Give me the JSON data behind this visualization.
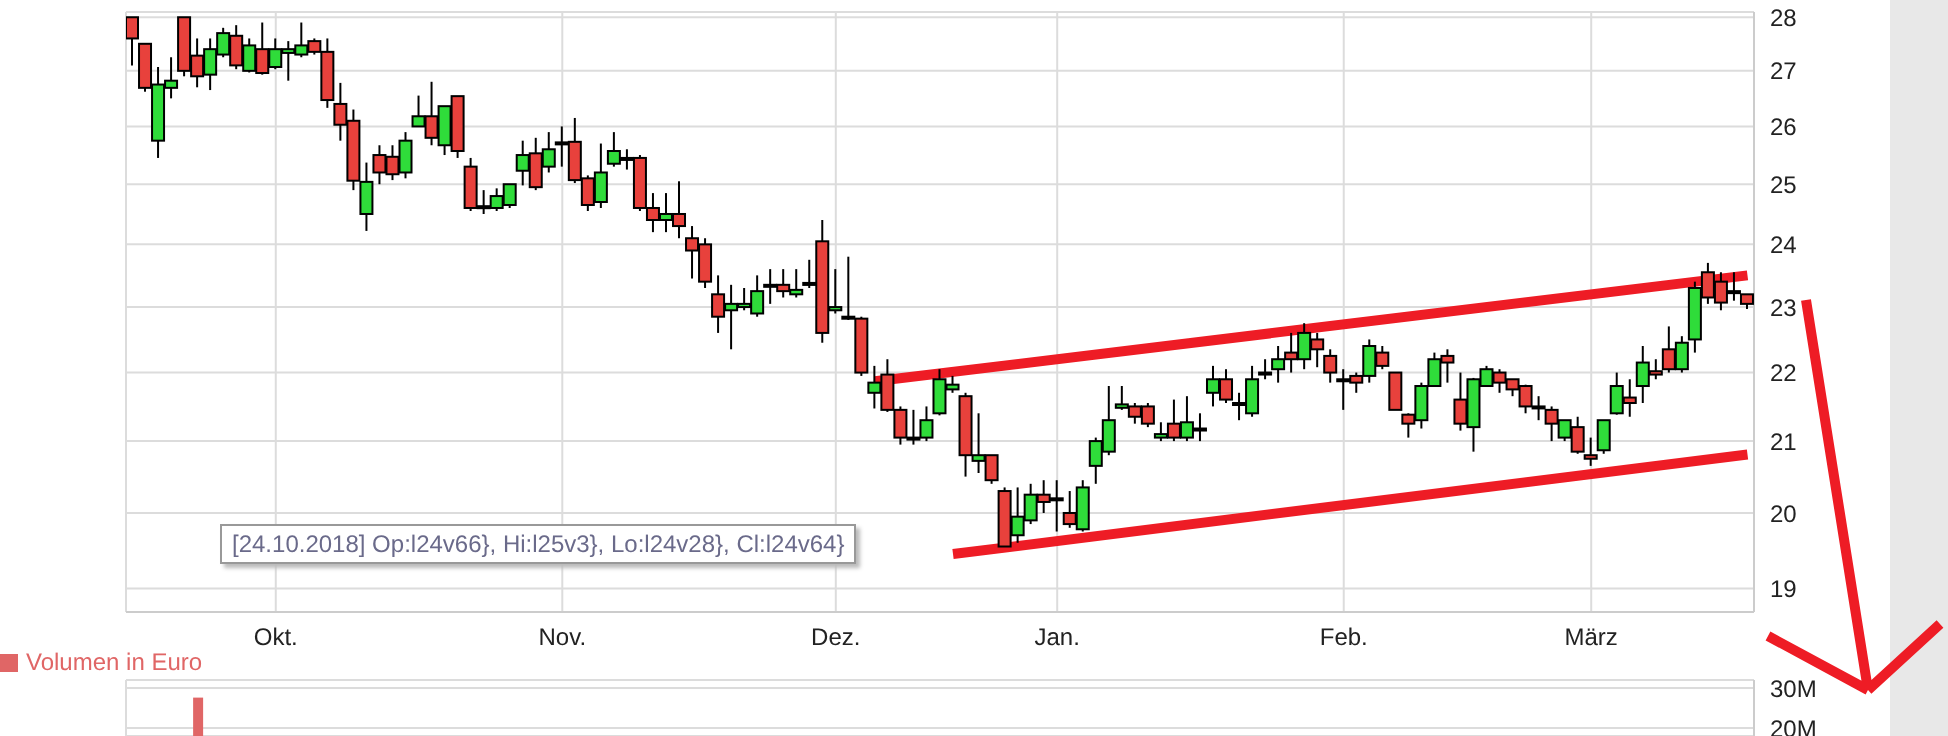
{
  "chart_data": [
    {
      "type": "candlestick",
      "log": true,
      "grid": true,
      "ylim": [
        18.7,
        28.1
      ],
      "yticks": [
        19,
        20,
        21,
        22,
        23,
        24,
        25,
        26,
        27,
        28
      ],
      "categories": [
        null,
        null,
        null,
        null,
        null,
        null,
        null,
        null,
        null,
        null,
        null,
        "Okt.",
        null,
        null,
        null,
        null,
        null,
        null,
        null,
        null,
        null,
        null,
        null,
        null,
        null,
        null,
        null,
        null,
        null,
        null,
        null,
        null,
        null,
        "Nov.",
        null,
        null,
        null,
        null,
        null,
        null,
        null,
        null,
        null,
        null,
        null,
        null,
        null,
        null,
        null,
        null,
        null,
        null,
        null,
        null,
        "Dez.",
        null,
        null,
        null,
        null,
        null,
        null,
        null,
        null,
        null,
        null,
        null,
        null,
        null,
        null,
        null,
        null,
        "Jan.",
        null,
        null,
        null,
        null,
        null,
        null,
        null,
        null,
        null,
        null,
        null,
        null,
        null,
        null,
        null,
        null,
        null,
        null,
        null,
        null,
        null,
        "Feb.",
        null,
        null,
        null,
        null,
        null,
        null,
        null,
        null,
        null,
        null,
        null,
        null,
        null,
        null,
        null,
        null,
        null,
        null,
        "März",
        null,
        null,
        null,
        null,
        null,
        null,
        null,
        null,
        null,
        null,
        null,
        null
      ],
      "annotations": [
        "[24.10.2018] Op:l24v66}, Hi:l25v3}, Lo:l24v28}, Cl:l24v64}"
      ],
      "ohlc": [
        [
          28.0,
          28.0,
          27.1,
          27.6
        ],
        [
          27.5,
          27.5,
          26.62,
          26.69
        ],
        [
          25.75,
          27.07,
          25.45,
          26.75
        ],
        [
          26.69,
          27.25,
          26.5,
          26.82
        ],
        [
          28.0,
          28.0,
          26.9,
          27.0
        ],
        [
          27.28,
          27.6,
          26.7,
          26.9
        ],
        [
          26.93,
          27.6,
          26.65,
          27.4
        ],
        [
          27.3,
          27.8,
          27.25,
          27.7
        ],
        [
          27.65,
          27.85,
          27.03,
          27.1
        ],
        [
          27.0,
          27.6,
          26.97,
          27.47
        ],
        [
          27.4,
          27.9,
          26.93,
          26.96
        ],
        [
          27.07,
          27.6,
          27.03,
          27.4
        ],
        [
          27.33,
          27.55,
          26.82,
          27.4
        ],
        [
          27.3,
          27.9,
          27.25,
          27.47
        ],
        [
          27.55,
          27.6,
          27.3,
          27.35
        ],
        [
          27.35,
          27.6,
          26.33,
          26.47
        ],
        [
          26.4,
          26.78,
          25.75,
          26.03
        ],
        [
          26.1,
          26.3,
          24.9,
          25.06
        ],
        [
          24.5,
          25.37,
          24.22,
          25.04
        ],
        [
          25.5,
          25.67,
          25.0,
          25.2
        ],
        [
          25.47,
          25.67,
          25.07,
          25.17
        ],
        [
          25.2,
          25.9,
          25.1,
          25.75
        ],
        [
          26.0,
          26.55,
          26.0,
          26.18
        ],
        [
          26.18,
          26.8,
          25.67,
          25.8
        ],
        [
          25.67,
          26.36,
          25.5,
          26.36
        ],
        [
          26.54,
          26.54,
          25.45,
          25.57
        ],
        [
          25.3,
          25.45,
          24.55,
          24.6
        ],
        [
          24.63,
          24.9,
          24.5,
          24.6
        ],
        [
          24.6,
          24.93,
          24.55,
          24.8
        ],
        [
          24.65,
          25.0,
          24.6,
          25.0
        ],
        [
          25.23,
          25.75,
          24.98,
          25.5
        ],
        [
          25.53,
          25.8,
          24.9,
          24.95
        ],
        [
          25.3,
          25.9,
          25.2,
          25.6
        ],
        [
          25.72,
          26.0,
          25.3,
          25.72
        ],
        [
          25.73,
          26.15,
          25.02,
          25.07
        ],
        [
          25.1,
          25.15,
          24.55,
          24.65
        ],
        [
          24.7,
          25.7,
          24.6,
          25.2
        ],
        [
          25.35,
          25.9,
          25.3,
          25.57
        ],
        [
          25.45,
          25.6,
          25.25,
          25.45
        ],
        [
          25.45,
          25.5,
          24.55,
          24.6
        ],
        [
          24.6,
          24.85,
          24.2,
          24.4
        ],
        [
          24.4,
          24.85,
          24.2,
          24.5
        ],
        [
          24.5,
          25.05,
          24.1,
          24.3
        ],
        [
          24.1,
          24.3,
          23.45,
          23.9
        ],
        [
          24.0,
          24.1,
          23.3,
          23.4
        ],
        [
          23.2,
          23.5,
          22.6,
          22.85
        ],
        [
          22.95,
          23.35,
          22.35,
          23.05
        ],
        [
          23.0,
          23.3,
          22.95,
          23.05
        ],
        [
          22.9,
          23.5,
          22.85,
          23.25
        ],
        [
          23.35,
          23.6,
          23.05,
          23.35
        ],
        [
          23.35,
          23.6,
          23.15,
          23.25
        ],
        [
          23.2,
          23.6,
          23.15,
          23.27
        ],
        [
          23.38,
          23.75,
          23.3,
          23.38
        ],
        [
          24.05,
          24.4,
          22.45,
          22.6
        ],
        [
          22.95,
          23.6,
          22.9,
          23.0
        ],
        [
          22.85,
          23.8,
          22.8,
          22.85
        ],
        [
          22.82,
          22.85,
          21.95,
          22.0
        ],
        [
          21.7,
          22.1,
          21.47,
          21.85
        ],
        [
          21.97,
          22.2,
          21.42,
          21.45
        ],
        [
          21.45,
          21.5,
          20.95,
          21.05
        ],
        [
          21.05,
          21.45,
          20.95,
          21.05
        ],
        [
          21.05,
          21.5,
          21.0,
          21.3
        ],
        [
          21.4,
          22.05,
          21.37,
          21.9
        ],
        [
          21.75,
          21.95,
          21.7,
          21.82
        ],
        [
          21.65,
          21.7,
          20.5,
          20.8
        ],
        [
          20.72,
          21.4,
          20.55,
          20.8
        ],
        [
          20.8,
          20.8,
          20.4,
          20.45
        ],
        [
          20.3,
          20.35,
          19.55,
          19.55
        ],
        [
          19.7,
          20.35,
          19.6,
          19.95
        ],
        [
          19.9,
          20.4,
          19.85,
          20.25
        ],
        [
          20.25,
          20.45,
          20.0,
          20.15
        ],
        [
          20.2,
          20.45,
          19.75,
          20.2
        ],
        [
          20.0,
          20.3,
          19.8,
          19.85
        ],
        [
          19.78,
          20.45,
          19.75,
          20.35
        ],
        [
          20.65,
          21.05,
          20.4,
          21.0
        ],
        [
          20.85,
          21.8,
          20.8,
          21.3
        ],
        [
          21.48,
          21.8,
          21.45,
          21.53
        ],
        [
          21.5,
          21.55,
          21.25,
          21.35
        ],
        [
          21.5,
          21.55,
          21.2,
          21.25
        ],
        [
          21.05,
          21.27,
          21.0,
          21.1
        ],
        [
          21.25,
          21.6,
          21.0,
          21.05
        ],
        [
          21.05,
          21.65,
          21.0,
          21.27
        ],
        [
          21.18,
          21.4,
          21.0,
          21.18
        ],
        [
          21.7,
          22.1,
          21.5,
          21.9
        ],
        [
          21.9,
          22.05,
          21.55,
          21.6
        ],
        [
          21.55,
          21.7,
          21.3,
          21.55
        ],
        [
          21.4,
          22.1,
          21.35,
          21.9
        ],
        [
          22.0,
          22.2,
          21.9,
          22.0
        ],
        [
          22.05,
          22.4,
          21.85,
          22.2
        ],
        [
          22.3,
          22.6,
          22.0,
          22.2
        ],
        [
          22.2,
          22.75,
          22.05,
          22.6
        ],
        [
          22.5,
          22.6,
          22.08,
          22.35
        ],
        [
          22.25,
          22.35,
          21.85,
          22.0
        ],
        [
          21.9,
          22.05,
          21.45,
          21.9
        ],
        [
          21.95,
          22.0,
          21.7,
          21.85
        ],
        [
          21.95,
          22.5,
          21.85,
          22.4
        ],
        [
          22.3,
          22.4,
          22.05,
          22.1
        ],
        [
          22.0,
          22.0,
          21.45,
          21.45
        ],
        [
          21.38,
          21.4,
          21.05,
          21.25
        ],
        [
          21.3,
          21.85,
          21.18,
          21.8
        ],
        [
          21.8,
          22.3,
          21.8,
          22.2
        ],
        [
          22.25,
          22.35,
          21.85,
          22.15
        ],
        [
          21.6,
          22.0,
          21.15,
          21.25
        ],
        [
          21.2,
          21.92,
          20.85,
          21.9
        ],
        [
          21.8,
          22.1,
          21.8,
          22.05
        ],
        [
          22.0,
          22.05,
          21.7,
          21.85
        ],
        [
          21.9,
          21.9,
          21.65,
          21.75
        ],
        [
          21.8,
          21.82,
          21.4,
          21.5
        ],
        [
          21.5,
          21.65,
          21.3,
          21.5
        ],
        [
          21.45,
          21.5,
          21.0,
          21.25
        ],
        [
          21.05,
          21.3,
          21.0,
          21.3
        ],
        [
          21.2,
          21.35,
          20.82,
          20.85
        ],
        [
          20.8,
          21.05,
          20.65,
          20.75
        ],
        [
          20.87,
          21.3,
          20.82,
          21.3
        ],
        [
          21.4,
          22.0,
          21.38,
          21.8
        ],
        [
          21.63,
          21.9,
          21.35,
          21.55
        ],
        [
          21.8,
          22.4,
          21.55,
          22.15
        ],
        [
          22.02,
          22.2,
          21.9,
          21.97
        ],
        [
          22.35,
          22.7,
          22.0,
          22.05
        ],
        [
          22.05,
          22.55,
          22.0,
          22.45
        ],
        [
          22.5,
          23.4,
          22.3,
          23.3
        ],
        [
          23.55,
          23.7,
          23.05,
          23.15
        ],
        [
          23.4,
          23.55,
          22.95,
          23.07
        ],
        [
          23.25,
          23.55,
          23.1,
          23.25
        ],
        [
          23.2,
          23.2,
          22.97,
          23.05
        ]
      ],
      "colors": [
        "#e8413c",
        "#e8413c",
        "#2fdc3a",
        "#2fdc3a",
        "#e8413c",
        "#e8413c",
        "#2fdc3a",
        "#2fdc3a",
        "#e8413c",
        "#2fdc3a",
        "#e8413c",
        "#2fdc3a",
        "#2fdc3a",
        "#2fdc3a",
        "#e8413c",
        "#e8413c",
        "#e8413c",
        "#e8413c",
        "#2fdc3a",
        "#e8413c",
        "#e8413c",
        "#2fdc3a",
        "#2fdc3a",
        "#e8413c",
        "#2fdc3a",
        "#e8413c",
        "#e8413c",
        "#e8413c",
        "#2fdc3a",
        "#2fdc3a",
        "#2fdc3a",
        "#e8413c",
        "#2fdc3a",
        "#2fdc3a",
        "#e8413c",
        "#e8413c",
        "#2fdc3a",
        "#2fdc3a",
        "#2fdc3a",
        "#e8413c",
        "#e8413c",
        "#2fdc3a",
        "#e8413c",
        "#e8413c",
        "#e8413c",
        "#e8413c",
        "#2fdc3a",
        "#2fdc3a",
        "#2fdc3a",
        "#2fdc3a",
        "#e8413c",
        "#2fdc3a",
        "#2fdc3a",
        "#e8413c",
        "#2fdc3a",
        "#2fdc3a",
        "#e8413c",
        "#2fdc3a",
        "#e8413c",
        "#e8413c",
        "#2fdc3a",
        "#2fdc3a",
        "#2fdc3a",
        "#2fdc3a",
        "#e8413c",
        "#2fdc3a",
        "#e8413c",
        "#e8413c",
        "#2fdc3a",
        "#2fdc3a",
        "#e8413c",
        "#2fdc3a",
        "#e8413c",
        "#2fdc3a",
        "#2fdc3a",
        "#2fdc3a",
        "#2fdc3a",
        "#e8413c",
        "#e8413c",
        "#2fdc3a",
        "#e8413c",
        "#2fdc3a",
        "#2fdc3a",
        "#2fdc3a",
        "#e8413c",
        "#2fdc3a",
        "#2fdc3a",
        "#2fdc3a",
        "#2fdc3a",
        "#e8413c",
        "#2fdc3a",
        "#e8413c",
        "#e8413c",
        "#2fdc3a",
        "#e8413c",
        "#2fdc3a",
        "#e8413c",
        "#e8413c",
        "#e8413c",
        "#2fdc3a",
        "#2fdc3a",
        "#e8413c",
        "#e8413c",
        "#2fdc3a",
        "#2fdc3a",
        "#e8413c",
        "#e8413c",
        "#e8413c",
        "#2fdc3a",
        "#e8413c",
        "#2fdc3a",
        "#e8413c",
        "#e8413c",
        "#2fdc3a",
        "#2fdc3a",
        "#e8413c",
        "#2fdc3a",
        "#e8413c",
        "#e8413c",
        "#2fdc3a",
        "#2fdc3a",
        "#e8413c",
        "#e8413c",
        "#2fdc3a",
        "#e8413c"
      ],
      "series": [
        {
          "type": "line",
          "color": "#ee1c25",
          "values": [
            null,
            null,
            null,
            null,
            null,
            null,
            null,
            null,
            null,
            null,
            null,
            null,
            null,
            null,
            null,
            null,
            null,
            null,
            null,
            null,
            null,
            null,
            null,
            null,
            null,
            null,
            null,
            null,
            null,
            null,
            null,
            null,
            null,
            null,
            null,
            null,
            null,
            null,
            null,
            null,
            null,
            null,
            null,
            null,
            null,
            null,
            null,
            null,
            null,
            null,
            null,
            null,
            null,
            null,
            null,
            null,
            null,
            21.87,
            null,
            null,
            null,
            null,
            null,
            null,
            null,
            null,
            null,
            null,
            null,
            null,
            null,
            null,
            null,
            null,
            null,
            null,
            null,
            null,
            null,
            null,
            null,
            null,
            null,
            null,
            null,
            null,
            null,
            null,
            null,
            null,
            null,
            null,
            null,
            null,
            null,
            null,
            null,
            null,
            null,
            null,
            null,
            null,
            null,
            null,
            null,
            null,
            null,
            null,
            null,
            null,
            null,
            null,
            null,
            null,
            null,
            null,
            null,
            null,
            null,
            null,
            null,
            null,
            null,
            null,
            23.5
          ]
        },
        {
          "type": "line",
          "color": "#ee1c25",
          "values": [
            null,
            null,
            null,
            null,
            null,
            null,
            null,
            null,
            null,
            null,
            null,
            null,
            null,
            null,
            null,
            null,
            null,
            null,
            null,
            null,
            null,
            null,
            null,
            null,
            null,
            null,
            null,
            null,
            null,
            null,
            null,
            null,
            null,
            null,
            null,
            null,
            null,
            null,
            null,
            null,
            null,
            null,
            null,
            null,
            null,
            null,
            null,
            null,
            null,
            null,
            null,
            null,
            null,
            null,
            null,
            null,
            null,
            null,
            null,
            null,
            null,
            null,
            null,
            19.45,
            null,
            null,
            null,
            null,
            null,
            null,
            null,
            null,
            null,
            null,
            null,
            null,
            null,
            null,
            null,
            null,
            null,
            null,
            null,
            null,
            null,
            null,
            null,
            null,
            null,
            null,
            null,
            null,
            null,
            null,
            null,
            null,
            null,
            null,
            null,
            null,
            null,
            null,
            null,
            null,
            null,
            null,
            null,
            null,
            null,
            null,
            null,
            null,
            null,
            null,
            null,
            null,
            null,
            null,
            null,
            null,
            null,
            null,
            null,
            null,
            20.81
          ]
        }
      ]
    },
    {
      "type": "bar",
      "grid": true,
      "legend": "top left",
      "tick_labels": "y",
      "ylim": [
        18000000,
        32000000
      ],
      "yticks": [
        {
          "value": 20000000,
          "label": "20M"
        },
        {
          "value": 30000000,
          "label": "30M"
        }
      ],
      "categories": [
        null,
        null,
        null,
        null,
        null,
        null,
        null,
        null,
        null,
        null,
        null,
        null,
        null,
        null,
        null,
        null,
        null,
        null,
        null,
        null,
        null,
        null,
        null,
        null,
        null,
        null,
        null,
        null,
        null,
        null,
        null,
        null,
        null,
        null,
        null,
        null,
        null,
        null,
        null,
        null,
        null,
        null,
        null,
        null,
        null,
        null,
        null,
        null,
        null,
        null,
        null,
        null,
        null,
        null,
        null,
        null,
        null,
        null,
        null,
        null,
        null,
        null,
        null,
        null,
        null,
        null,
        null,
        null,
        null,
        null,
        null,
        null,
        null,
        null,
        null,
        null,
        null,
        null,
        null,
        null,
        null,
        null,
        null,
        null,
        null,
        null,
        null,
        null,
        null,
        null,
        null,
        null,
        null,
        null,
        null,
        null,
        null,
        null,
        null,
        null,
        null,
        null,
        null,
        null,
        null,
        null,
        null,
        null,
        null,
        null,
        null,
        null,
        null,
        null,
        null,
        null,
        null,
        null,
        null,
        null,
        null,
        null,
        null,
        null,
        null
      ],
      "series": [
        {
          "name": "Volumen in Euro",
          "color": "#e06666",
          "values": [
            null,
            null,
            null,
            null,
            null,
            27600000,
            null,
            null,
            null,
            null,
            null,
            null,
            null,
            null,
            null,
            null,
            null,
            null,
            null,
            null,
            null,
            null,
            null,
            null,
            null,
            null,
            null,
            null,
            null,
            null,
            null,
            null,
            null,
            null,
            null,
            null,
            null,
            null,
            null,
            null,
            null,
            null,
            null,
            null,
            null,
            null,
            null,
            null,
            null,
            null,
            null,
            null,
            null,
            null,
            null,
            null,
            null,
            null,
            null,
            null,
            null,
            null,
            null,
            null,
            null,
            null,
            null,
            null,
            null,
            null,
            null,
            null,
            null,
            null,
            null,
            null,
            null,
            null,
            null,
            null,
            null,
            null,
            null,
            null,
            null,
            null,
            null,
            null,
            null,
            null,
            null,
            null,
            null,
            null,
            null,
            null,
            null,
            null,
            null,
            null,
            null,
            null,
            null,
            null,
            null,
            null,
            null,
            null,
            null,
            null,
            null,
            null,
            null,
            null,
            null,
            null,
            null,
            null,
            null,
            null,
            null,
            null,
            null,
            null,
            null
          ]
        }
      ]
    }
  ]
}
